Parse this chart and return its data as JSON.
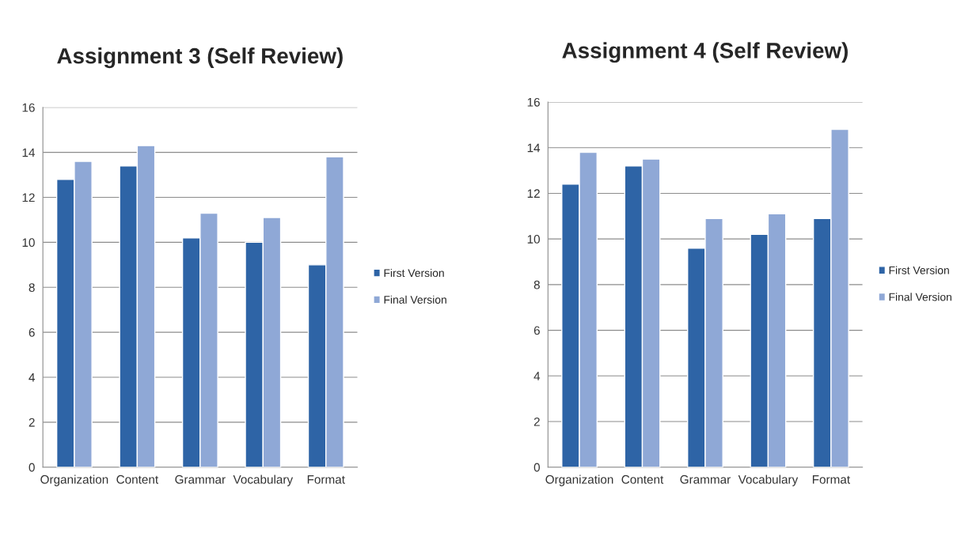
{
  "chart_data": [
    {
      "type": "bar",
      "title": "Assignment 3 (Self Review)",
      "categories": [
        "Organization",
        "Content",
        "Grammar",
        "Vocabulary",
        "Format"
      ],
      "series": [
        {
          "name": "First Version",
          "color": "#2e64a6",
          "values": [
            12.8,
            13.4,
            10.2,
            10.0,
            9.0
          ]
        },
        {
          "name": "Final Version",
          "color": "#8fa8d6",
          "values": [
            13.6,
            14.3,
            11.3,
            11.1,
            13.8
          ]
        }
      ],
      "ylim": [
        0,
        16
      ],
      "yticks": [
        0,
        2,
        4,
        6,
        8,
        10,
        12,
        14,
        16
      ],
      "grid": "y",
      "legend": "right"
    },
    {
      "type": "bar",
      "title": "Assignment 4 (Self Review)",
      "categories": [
        "Organization",
        "Content",
        "Grammar",
        "Vocabulary",
        "Format"
      ],
      "series": [
        {
          "name": "First Version",
          "color": "#2e64a6",
          "values": [
            12.4,
            13.2,
            9.6,
            10.2,
            10.9
          ]
        },
        {
          "name": "Final Version",
          "color": "#8fa8d6",
          "values": [
            13.8,
            13.5,
            10.9,
            11.1,
            14.8
          ]
        }
      ],
      "ylim": [
        0,
        16
      ],
      "yticks": [
        0,
        2,
        4,
        6,
        8,
        10,
        12,
        14,
        16
      ],
      "grid": "y",
      "legend": "right"
    }
  ]
}
